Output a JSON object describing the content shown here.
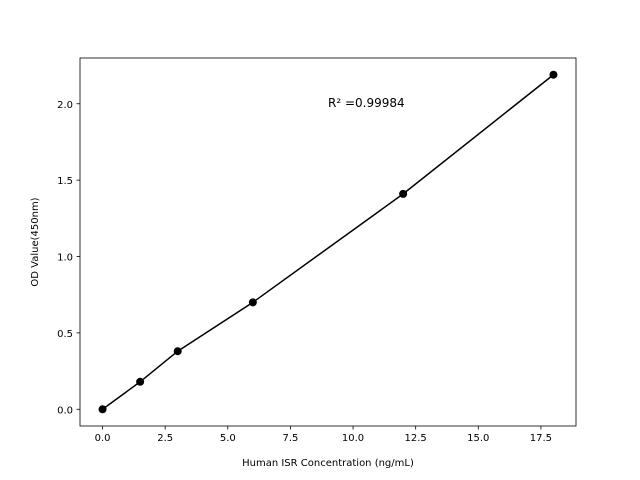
{
  "chart_data": {
    "type": "line",
    "x_label": "Human ISR Concentration (ng/mL)",
    "y_label": "OD Value(450nm)",
    "annotation": "R² =0.99984",
    "x": [
      0,
      1.5,
      3,
      6,
      12,
      18
    ],
    "series": [
      {
        "color": "#000000",
        "values": [
          0,
          0.18,
          0.38,
          0.7,
          1.41,
          2.19
        ]
      }
    ],
    "xlim": [
      -0.9,
      18.9
    ],
    "ylim": [
      -0.1095,
      2.2995
    ],
    "xticks": [
      {
        "value": 0,
        "label": "0.0"
      },
      {
        "value": 2.5,
        "label": "2.5"
      },
      {
        "value": 5,
        "label": "5.0"
      },
      {
        "value": 7.5,
        "label": "7.5"
      },
      {
        "value": 10,
        "label": "10.0"
      },
      {
        "value": 12.5,
        "label": "12.5"
      },
      {
        "value": 15,
        "label": "15.0"
      },
      {
        "value": 17.5,
        "label": "17.5"
      }
    ],
    "yticks": [
      {
        "value": 0,
        "label": "0.0"
      },
      {
        "value": 0.5,
        "label": "0.5"
      },
      {
        "value": 1,
        "label": "1.0"
      },
      {
        "value": 1.5,
        "label": "1.5"
      },
      {
        "value": 2,
        "label": "2.0"
      }
    ],
    "grid": false,
    "markers": true
  }
}
